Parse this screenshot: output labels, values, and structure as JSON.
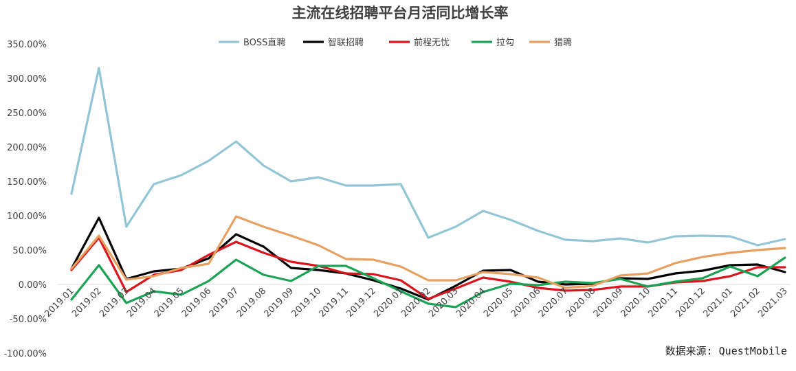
{
  "chart_data": {
    "type": "line",
    "title": "主流在线招聘平台月活同比增长率",
    "source_note": "数据来源: QuestMobile",
    "ylim": [
      -100,
      350
    ],
    "ytick_values": [
      -100,
      -50,
      0,
      50,
      100,
      150,
      200,
      250,
      300,
      350
    ],
    "ytick_labels": [
      "-100.00%",
      "-50.00%",
      "0.00%",
      "50.00%",
      "100.00%",
      "150.00%",
      "200.00%",
      "250.00%",
      "300.00%",
      "350.00%"
    ],
    "grid": false,
    "legend_position": "top-center",
    "categories": [
      "2019.01",
      "2019.02",
      "2019.03",
      "2019.04",
      "2019.05",
      "2019.06",
      "2019.07",
      "2019.08",
      "2019.09",
      "2019.10",
      "2019.11",
      "2019.12",
      "2020.01",
      "2020.02",
      "2020.03",
      "2020.04",
      "2020.05",
      "2020.06",
      "2020.07",
      "2020.08",
      "2020.09",
      "2020.10",
      "2020.11",
      "2020.12",
      "2021.01",
      "2021.02",
      "2021.03"
    ],
    "series": [
      {
        "name": "BOSS直聘",
        "color": "#92c5d6",
        "values": [
          132,
          315,
          84,
          146,
          159,
          180,
          208,
          173,
          150,
          156,
          144,
          144,
          146,
          68,
          84,
          107,
          94,
          78,
          65,
          63,
          67,
          61,
          70,
          71,
          70,
          57,
          66
        ]
      },
      {
        "name": "智联招聘",
        "color": "#000000",
        "values": [
          23,
          97,
          8,
          19,
          23,
          38,
          73,
          55,
          24,
          21,
          16,
          6,
          -6,
          -22,
          -2,
          20,
          21,
          4,
          0,
          1,
          9,
          8,
          16,
          20,
          28,
          29,
          18
        ]
      },
      {
        "name": "前程无忧",
        "color": "#d9161d",
        "values": [
          21,
          68,
          -11,
          14,
          21,
          43,
          62,
          46,
          33,
          27,
          16,
          15,
          6,
          -21,
          -6,
          10,
          4,
          -5,
          -9,
          -8,
          -3,
          -3,
          3,
          5,
          12,
          25,
          25
        ]
      },
      {
        "name": "拉勾",
        "color": "#1aa354",
        "values": [
          -22,
          28,
          -27,
          -10,
          -15,
          5,
          36,
          14,
          5,
          27,
          27,
          9,
          -10,
          -28,
          -33,
          -11,
          1,
          -1,
          4,
          2,
          8,
          -3,
          4,
          9,
          26,
          12,
          39
        ]
      },
      {
        "name": "猎聘",
        "color": "#e8a060",
        "values": [
          23,
          71,
          7,
          12,
          24,
          30,
          99,
          84,
          71,
          57,
          37,
          36,
          26,
          6,
          6,
          18,
          15,
          10,
          -5,
          -2,
          13,
          16,
          31,
          40,
          46,
          50,
          53
        ]
      }
    ]
  }
}
